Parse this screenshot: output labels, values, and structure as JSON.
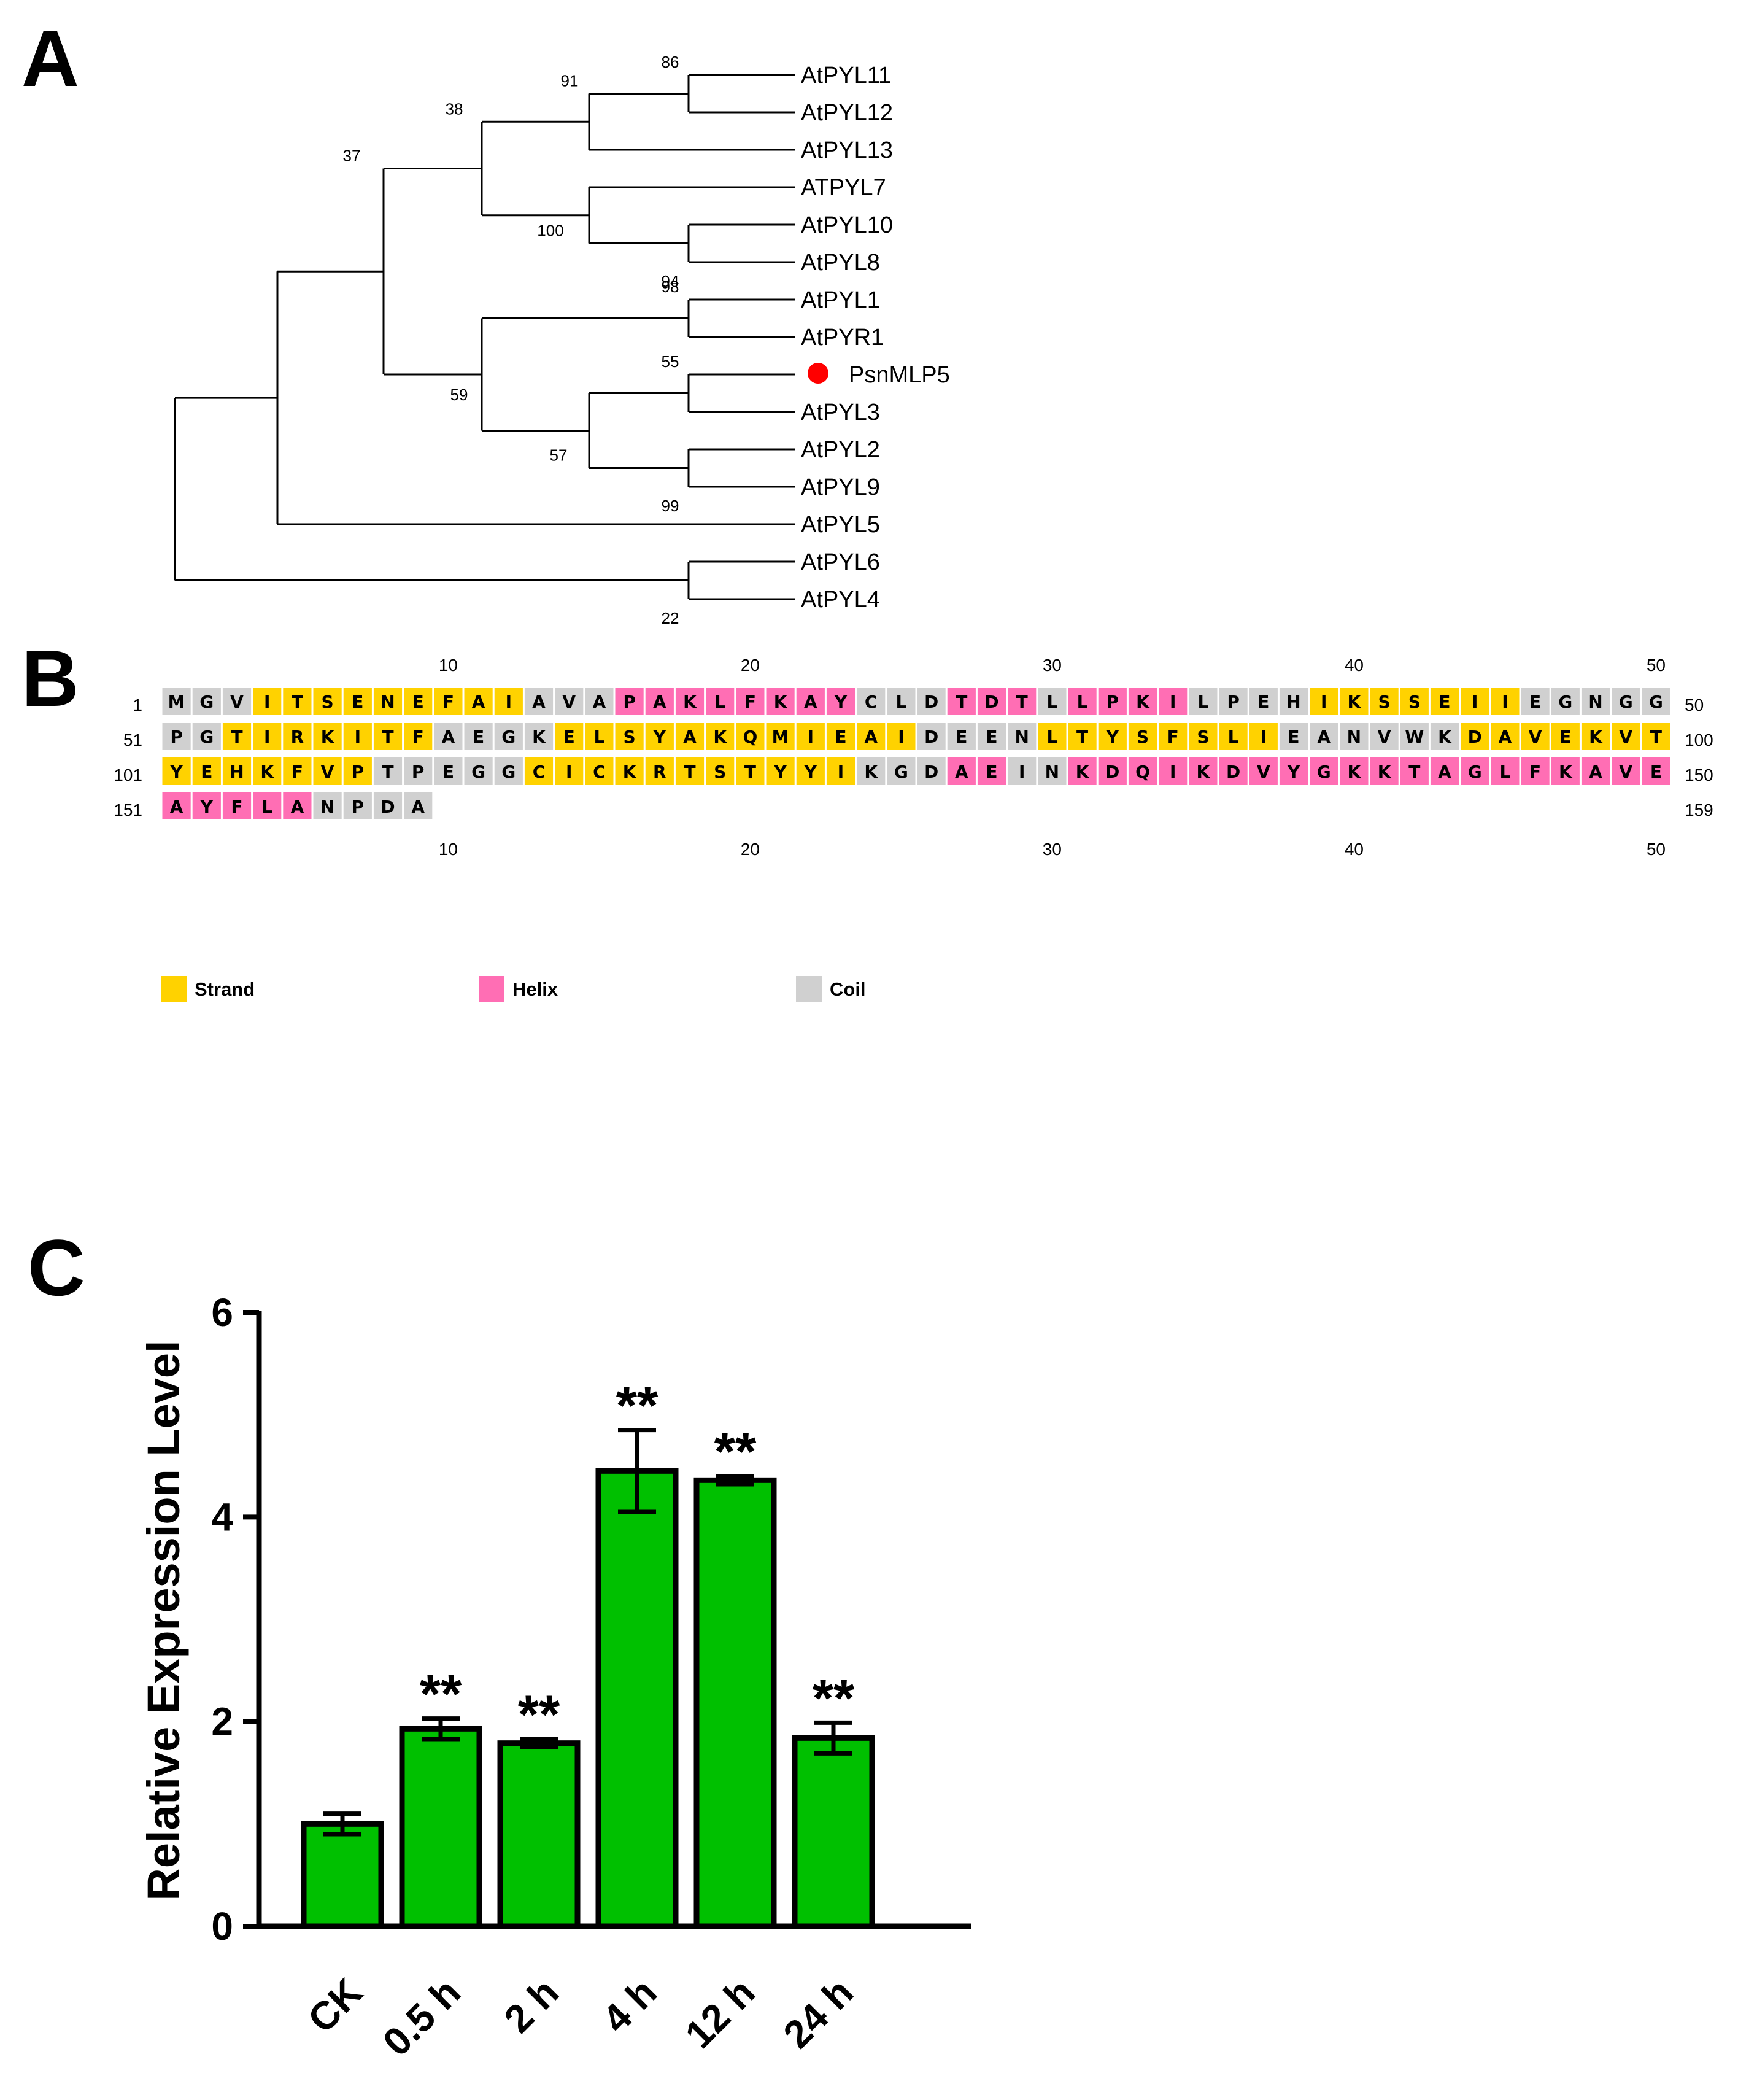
{
  "panels": {
    "a": "A",
    "b": "B",
    "c": "C"
  },
  "colors": {
    "strand": "#ffd200",
    "helix": "#ff6eb4",
    "coil": "#d0d0d0",
    "bar": "#00c000",
    "marker": "#ff0000"
  },
  "tree": {
    "taxa": [
      "AtPYL11",
      "AtPYL12",
      "AtPYL13",
      "ATPYL7",
      "AtPYL10",
      "AtPYL8",
      "AtPYL1",
      "AtPYR1",
      "PsnMLP5",
      "AtPYL3",
      "AtPYL2",
      "AtPYL9",
      "AtPYL5",
      "AtPYL6",
      "AtPYL4"
    ],
    "highlight": "PsnMLP5",
    "bootstrap": [
      "86",
      "91",
      "38",
      "100",
      "94",
      "37",
      "98",
      "59",
      "55",
      "57",
      "99",
      "22"
    ]
  },
  "sequence": {
    "length": 159,
    "ruler": [
      "10",
      "20",
      "30",
      "40",
      "50"
    ],
    "rows": [
      {
        "start": "1",
        "end": "50",
        "residues": "MGVITSENEFAIAVAPAKLFKAYCLDTDTLLPKILPEHIKSSEIIEGNGG",
        "ss": "CCCSSSSSSSSSCCCHHHHHHHHCCCHHHCHHHHCCCCSSSSSSSCCCCC"
      },
      {
        "start": "51",
        "end": "100",
        "residues": "PGTIRKITFAEGKELSYAKQMIEAIDEENLTYSFSLIEANVWKDAVEKVT",
        "ss": "CCSSSSSSSCCCCSSSSSSSSSSSSCCCCSSSSSSSSCCCCCCSSSSSSS"
      },
      {
        "start": "101",
        "end": "150",
        "residues": "YEHKFVPTPEGGCICKRTSTYYIKGDAEINKDQIKDVYGKKTAGLFKAVE",
        "ss": "SSSSSSSCCCCCSSSSSSSSSSSCCCHHCCHHHHHHHHHHHHHHHHHHHH"
      },
      {
        "start": "151",
        "end": "159",
        "residues": "AYFLANPDA",
        "ss": "HHHHHCCCC"
      }
    ],
    "legend": [
      {
        "key": "S",
        "label": "Strand"
      },
      {
        "key": "H",
        "label": "Helix"
      },
      {
        "key": "C",
        "label": "Coil"
      }
    ]
  },
  "chart_data": {
    "type": "bar",
    "categories": [
      "CK",
      "0.5 h",
      "2 h",
      "4 h",
      "12 h",
      "24 h"
    ],
    "values": [
      1.0,
      1.93,
      1.79,
      4.45,
      4.36,
      1.84
    ],
    "errors": [
      0.1,
      0.1,
      0.04,
      0.4,
      0.04,
      0.15
    ],
    "significance": [
      "",
      "**",
      "**",
      "**",
      "**",
      "**"
    ],
    "ylabel": "Relative Expression Level",
    "xlabel": "",
    "ylim": [
      0,
      6
    ],
    "yticks": [
      0,
      2,
      4,
      6
    ],
    "grid": false
  }
}
